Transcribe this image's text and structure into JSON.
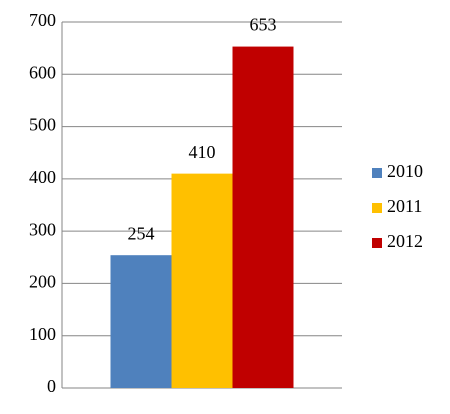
{
  "chart_data": {
    "type": "bar",
    "categories": [
      null
    ],
    "series": [
      {
        "name": "2010",
        "color": "#4f81bd",
        "values": [
          254
        ]
      },
      {
        "name": "2011",
        "color": "#ffc000",
        "values": [
          410
        ]
      },
      {
        "name": "2012",
        "color": "#c00000",
        "values": [
          653
        ]
      }
    ],
    "ylim": [
      0,
      700
    ],
    "yticks": [
      0,
      100,
      200,
      300,
      400,
      500,
      600,
      700
    ],
    "grid": true,
    "legend": "right",
    "data_labels": true
  }
}
